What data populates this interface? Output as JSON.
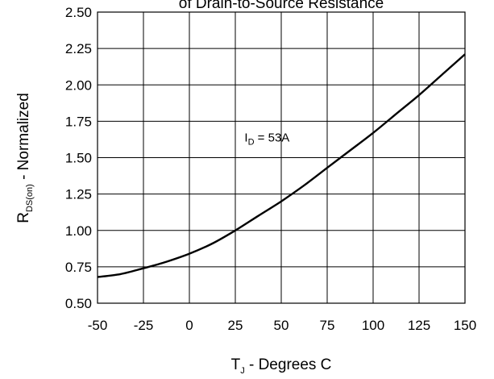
{
  "chart_data": {
    "type": "line",
    "title": "of Drain-to-Source Resistance",
    "xlabel": {
      "main": "T",
      "sub": "J",
      "rest": " - Degrees C"
    },
    "ylabel": {
      "main": "R",
      "sub": "DS(on)",
      "rest": " - Normalized"
    },
    "xlim": [
      -50,
      150
    ],
    "ylim": [
      0.5,
      2.5
    ],
    "x_ticks": [
      -50,
      -25,
      0,
      25,
      50,
      75,
      100,
      125,
      150
    ],
    "x_tick_labels": [
      "-50",
      "-25",
      "0",
      "25",
      "50",
      "75",
      "100",
      "125",
      "150"
    ],
    "y_ticks": [
      0.5,
      0.75,
      1.0,
      1.25,
      1.5,
      1.75,
      2.0,
      2.25,
      2.5
    ],
    "y_tick_labels": [
      "0.50",
      "0.75",
      "1.00",
      "1.25",
      "1.50",
      "1.75",
      "2.00",
      "2.25",
      "2.50"
    ],
    "grid": true,
    "annotation": {
      "main": "I",
      "sub": "D",
      "rest": " = 53A",
      "x": 30,
      "y": 1.61
    },
    "series": [
      {
        "x": [
          -50,
          -37.5,
          -25,
          -12.5,
          0,
          12.5,
          25,
          37.5,
          50,
          62.5,
          75,
          87.5,
          100,
          112.5,
          125,
          137.5,
          150
        ],
        "values": [
          0.68,
          0.7,
          0.74,
          0.785,
          0.84,
          0.91,
          1.0,
          1.1,
          1.2,
          1.31,
          1.43,
          1.55,
          1.67,
          1.8,
          1.93,
          2.07,
          2.21
        ]
      }
    ]
  }
}
